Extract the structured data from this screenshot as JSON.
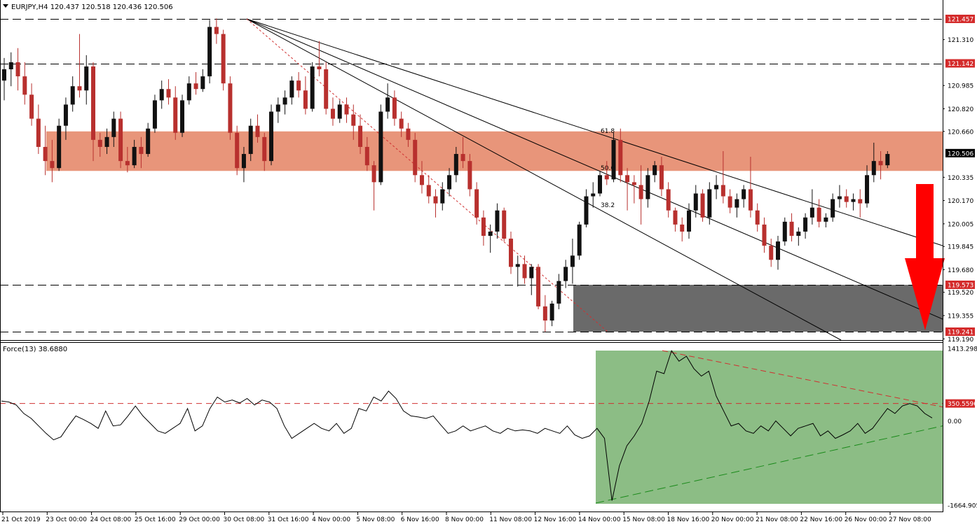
{
  "header": {
    "symbol_text": "EURJPY,H4  120.437 120.518 120.436 120.506"
  },
  "indicator": {
    "label": "Force(13) 38.6880"
  },
  "colors": {
    "bull": "#111111",
    "bear": "#b8302e",
    "resistance_zone": "#e8957a",
    "support_zone": "#6a6a6a",
    "force_zone": "#8cbd85",
    "arrow": "#ff0000",
    "marker_bg": "#d42b2b",
    "current_bg": "#000000"
  },
  "chart_data": [
    {
      "type": "candlestick",
      "title": "EURJPY,H4",
      "ylim": [
        119.19,
        121.53
      ],
      "price_labels": [
        "121.310",
        "120.985",
        "120.820",
        "120.660",
        "120.335",
        "120.170",
        "120.005",
        "119.845",
        "119.680",
        "119.520",
        "119.355",
        "119.190"
      ],
      "time_labels": [
        "21 Oct 2019",
        "23 Oct 00:00",
        "24 Oct 08:00",
        "25 Oct 16:00",
        "29 Oct 00:00",
        "30 Oct 08:00",
        "31 Oct 16:00",
        "4 Nov 00:00",
        "5 Nov 08:00",
        "6 Nov 16:00",
        "8 Nov 00:00",
        "11 Nov 08:00",
        "12 Nov 16:00",
        "14 Nov 00:00",
        "15 Nov 08:00",
        "18 Nov 16:00",
        "20 Nov 00:00",
        "21 Nov 08:00",
        "22 Nov 16:00",
        "26 Nov 00:00",
        "27 Nov 08:00"
      ],
      "horizontal_levels": [
        {
          "value": 121.457,
          "label": "121.457"
        },
        {
          "value": 121.142,
          "label": "121.142"
        },
        {
          "value": 119.573,
          "label": "119.573"
        },
        {
          "value": 119.241,
          "label": "119.241"
        }
      ],
      "current_price": {
        "value": 120.506,
        "label": "120.506"
      },
      "resistance_zone": [
        120.38,
        120.66
      ],
      "support_zone": [
        119.241,
        119.573
      ],
      "fibonacci_fan": {
        "anchor_price": 121.457,
        "ratios": [
          {
            "label": "61.8",
            "end_price": 119.85
          },
          {
            "label": "50.0",
            "end_price": 119.33
          },
          {
            "label": "38.2",
            "end_price": 118.95
          }
        ],
        "trend_end_price": 119.241
      },
      "ohlc": [
        [
          121.02,
          121.18,
          120.88,
          121.1
        ],
        [
          121.1,
          121.22,
          120.98,
          121.15
        ],
        [
          121.15,
          121.25,
          120.95,
          121.05
        ],
        [
          121.05,
          121.15,
          120.85,
          120.92
        ],
        [
          120.92,
          121.0,
          120.7,
          120.75
        ],
        [
          120.75,
          120.85,
          120.5,
          120.55
        ],
        [
          120.55,
          120.7,
          120.35,
          120.45
        ],
        [
          120.45,
          120.6,
          120.3,
          120.4
        ],
        [
          120.4,
          120.75,
          120.38,
          120.7
        ],
        [
          120.7,
          120.9,
          120.6,
          120.85
        ],
        [
          120.85,
          121.05,
          120.8,
          120.98
        ],
        [
          120.98,
          121.35,
          120.9,
          120.95
        ],
        [
          120.95,
          121.2,
          120.85,
          121.12
        ],
        [
          121.12,
          121.15,
          120.45,
          120.6
        ],
        [
          120.6,
          120.65,
          120.48,
          120.55
        ],
        [
          120.55,
          120.68,
          120.5,
          120.62
        ],
        [
          120.62,
          120.8,
          120.55,
          120.75
        ],
        [
          120.75,
          120.8,
          120.4,
          120.45
        ],
        [
          120.45,
          120.55,
          120.37,
          120.42
        ],
        [
          120.42,
          120.6,
          120.4,
          120.55
        ],
        [
          120.55,
          120.62,
          120.4,
          120.5
        ],
        [
          120.5,
          120.72,
          120.48,
          120.68
        ],
        [
          120.68,
          120.92,
          120.65,
          120.88
        ],
        [
          120.88,
          121.02,
          120.82,
          120.96
        ],
        [
          120.96,
          121.03,
          120.85,
          120.9
        ],
        [
          120.9,
          120.98,
          120.6,
          120.65
        ],
        [
          120.65,
          120.92,
          120.62,
          120.88
        ],
        [
          120.88,
          121.05,
          120.85,
          121.0
        ],
        [
          121.0,
          121.08,
          120.92,
          120.96
        ],
        [
          120.96,
          121.1,
          120.94,
          121.05
        ],
        [
          121.05,
          121.45,
          121.0,
          121.4
        ],
        [
          121.4,
          121.46,
          121.28,
          121.35
        ],
        [
          121.35,
          121.38,
          120.95,
          121.0
        ],
        [
          121.0,
          121.05,
          120.6,
          120.65
        ],
        [
          120.65,
          120.7,
          120.35,
          120.4
        ],
        [
          120.4,
          120.55,
          120.3,
          120.5
        ],
        [
          120.5,
          120.75,
          120.45,
          120.7
        ],
        [
          120.7,
          120.78,
          120.58,
          120.62
        ],
        [
          120.62,
          120.65,
          120.38,
          120.45
        ],
        [
          120.45,
          120.85,
          120.42,
          120.8
        ],
        [
          120.8,
          120.9,
          120.72,
          120.85
        ],
        [
          120.85,
          120.95,
          120.78,
          120.9
        ],
        [
          120.9,
          121.05,
          120.85,
          121.02
        ],
        [
          121.02,
          121.08,
          120.9,
          120.95
        ],
        [
          120.95,
          121.05,
          120.78,
          120.82
        ],
        [
          120.82,
          121.15,
          120.8,
          121.12
        ],
        [
          121.12,
          121.3,
          121.05,
          121.1
        ],
        [
          121.1,
          121.15,
          120.78,
          120.82
        ],
        [
          120.82,
          120.9,
          120.7,
          120.75
        ],
        [
          120.75,
          120.88,
          120.72,
          120.85
        ],
        [
          120.85,
          120.9,
          120.72,
          120.78
        ],
        [
          120.78,
          120.85,
          120.6,
          120.7
        ],
        [
          120.7,
          120.78,
          120.5,
          120.55
        ],
        [
          120.55,
          120.62,
          120.38,
          120.42
        ],
        [
          120.42,
          120.45,
          120.1,
          120.3
        ],
        [
          120.3,
          120.85,
          120.28,
          120.8
        ],
        [
          120.8,
          121.0,
          120.75,
          120.9
        ],
        [
          120.9,
          120.95,
          120.7,
          120.75
        ],
        [
          120.75,
          120.8,
          120.62,
          120.68
        ],
        [
          120.68,
          120.72,
          120.55,
          120.6
        ],
        [
          120.6,
          120.65,
          120.3,
          120.35
        ],
        [
          120.35,
          120.45,
          120.22,
          120.28
        ],
        [
          120.28,
          120.35,
          120.15,
          120.2
        ],
        [
          120.2,
          120.25,
          120.05,
          120.15
        ],
        [
          120.15,
          120.3,
          120.1,
          120.25
        ],
        [
          120.25,
          120.4,
          120.2,
          120.35
        ],
        [
          120.35,
          120.55,
          120.3,
          120.5
        ],
        [
          120.5,
          120.62,
          120.4,
          120.45
        ],
        [
          120.45,
          120.5,
          120.2,
          120.25
        ],
        [
          120.25,
          120.3,
          120.0,
          120.05
        ],
        [
          120.05,
          120.1,
          119.85,
          119.92
        ],
        [
          119.92,
          120.0,
          119.8,
          119.95
        ],
        [
          119.95,
          120.15,
          119.9,
          120.1
        ],
        [
          120.1,
          120.12,
          119.88,
          119.9
        ],
        [
          119.9,
          119.95,
          119.65,
          119.7
        ],
        [
          119.7,
          119.78,
          119.56,
          119.72
        ],
        [
          119.72,
          119.78,
          119.58,
          119.62
        ],
        [
          119.62,
          119.72,
          119.5,
          119.7
        ],
        [
          119.7,
          119.72,
          119.4,
          119.42
        ],
        [
          119.42,
          119.5,
          119.24,
          119.32
        ],
        [
          119.32,
          119.46,
          119.28,
          119.44
        ],
        [
          119.44,
          119.65,
          119.4,
          119.6
        ],
        [
          119.6,
          119.75,
          119.55,
          119.7
        ],
        [
          119.7,
          119.9,
          119.58,
          119.78
        ],
        [
          119.78,
          120.02,
          119.75,
          120.0
        ],
        [
          120.0,
          120.25,
          119.98,
          120.2
        ],
        [
          120.2,
          120.3,
          120.12,
          120.22
        ],
        [
          120.22,
          120.38,
          120.2,
          120.35
        ],
        [
          120.35,
          120.45,
          120.28,
          120.32
        ],
        [
          120.32,
          120.65,
          120.3,
          120.6
        ],
        [
          120.6,
          120.68,
          120.3,
          120.35
        ],
        [
          120.35,
          120.4,
          120.1,
          120.3
        ],
        [
          120.3,
          120.35,
          120.15,
          120.28
        ],
        [
          120.28,
          120.42,
          120.0,
          120.18
        ],
        [
          120.18,
          120.4,
          120.12,
          120.35
        ],
        [
          120.35,
          120.45,
          120.3,
          120.42
        ],
        [
          120.42,
          120.48,
          120.2,
          120.25
        ],
        [
          120.25,
          120.3,
          120.05,
          120.1
        ],
        [
          120.1,
          120.12,
          119.95,
          120.0
        ],
        [
          120.0,
          120.05,
          119.88,
          119.95
        ],
        [
          119.95,
          120.15,
          119.9,
          120.1
        ],
        [
          120.1,
          120.28,
          120.05,
          120.22
        ],
        [
          120.22,
          120.25,
          120.02,
          120.05
        ],
        [
          120.05,
          120.3,
          120.0,
          120.25
        ],
        [
          120.25,
          120.35,
          120.18,
          120.28
        ],
        [
          120.28,
          120.52,
          120.15,
          120.2
        ],
        [
          120.2,
          120.25,
          120.08,
          120.12
        ],
        [
          120.12,
          120.22,
          120.05,
          120.18
        ],
        [
          120.18,
          120.28,
          120.12,
          120.25
        ],
        [
          120.25,
          120.48,
          120.05,
          120.1
        ],
        [
          120.1,
          120.15,
          119.95,
          120.0
        ],
        [
          120.0,
          120.05,
          119.8,
          119.85
        ],
        [
          119.85,
          119.9,
          119.7,
          119.75
        ],
        [
          119.75,
          119.92,
          119.68,
          119.88
        ],
        [
          119.88,
          120.05,
          119.85,
          120.02
        ],
        [
          120.02,
          120.08,
          119.88,
          119.92
        ],
        [
          119.92,
          119.98,
          119.85,
          119.95
        ],
        [
          119.95,
          120.08,
          119.9,
          120.05
        ],
        [
          120.05,
          120.25,
          120.0,
          120.12
        ],
        [
          120.12,
          120.18,
          119.98,
          120.02
        ],
        [
          120.02,
          120.08,
          119.98,
          120.05
        ],
        [
          120.05,
          120.22,
          120.02,
          120.18
        ],
        [
          120.18,
          120.28,
          120.12,
          120.2
        ],
        [
          120.2,
          120.25,
          120.12,
          120.16
        ],
        [
          120.16,
          120.22,
          120.1,
          120.18
        ],
        [
          120.18,
          120.25,
          120.05,
          120.15
        ],
        [
          120.15,
          120.42,
          120.12,
          120.35
        ],
        [
          120.35,
          120.58,
          120.3,
          120.45
        ],
        [
          120.45,
          120.52,
          120.32,
          120.42
        ],
        [
          120.42,
          120.52,
          120.4,
          120.5
        ]
      ]
    },
    {
      "type": "line",
      "title": "Force(13) 38.6880",
      "ylim": [
        -1664.905,
        1413.2984
      ],
      "value_labels": [
        "1413.2984",
        "0.00",
        "-1664.905"
      ],
      "reference_level": {
        "value": 350.5596,
        "label": "350.5596"
      },
      "series": [
        {
          "values": [
            400,
            380,
            320,
            150,
            50,
            -100,
            -250,
            -380,
            -320,
            -100,
            100,
            30,
            -50,
            -150,
            200,
            -100,
            -80,
            100,
            300,
            100,
            -50,
            -200,
            -250,
            -150,
            -50,
            250,
            -200,
            -100,
            250,
            480,
            380,
            420,
            360,
            450,
            320,
            420,
            380,
            250,
            -100,
            -350,
            -250,
            -150,
            -50,
            -150,
            -200,
            -50,
            -250,
            -150,
            250,
            200,
            480,
            400,
            600,
            450,
            200,
            100,
            80,
            50,
            100,
            -80,
            -250,
            -200,
            -100,
            -200,
            -150,
            -100,
            -200,
            -250,
            -150,
            -200,
            -180,
            -200,
            -250,
            -150,
            -200,
            -250,
            -100,
            -280,
            -350,
            -300,
            -150,
            -350,
            -1600,
            -900,
            -500,
            -300,
            -50,
            400,
            1000,
            950,
            1410,
            1200,
            1300,
            1050,
            900,
            1000,
            500,
            200,
            -100,
            -50,
            -200,
            -250,
            -100,
            -200,
            0,
            -150,
            -300,
            -150,
            -100,
            -50,
            -300,
            -200,
            -350,
            -280,
            -200,
            -50,
            -250,
            -150,
            50,
            250,
            150,
            300,
            350,
            300,
            150,
            60
          ]
        }
      ],
      "trendlines": {
        "upper": {
          "start": 1413.2984,
          "end": 280
        },
        "lower": {
          "start": -1650,
          "end": -100
        }
      }
    }
  ]
}
